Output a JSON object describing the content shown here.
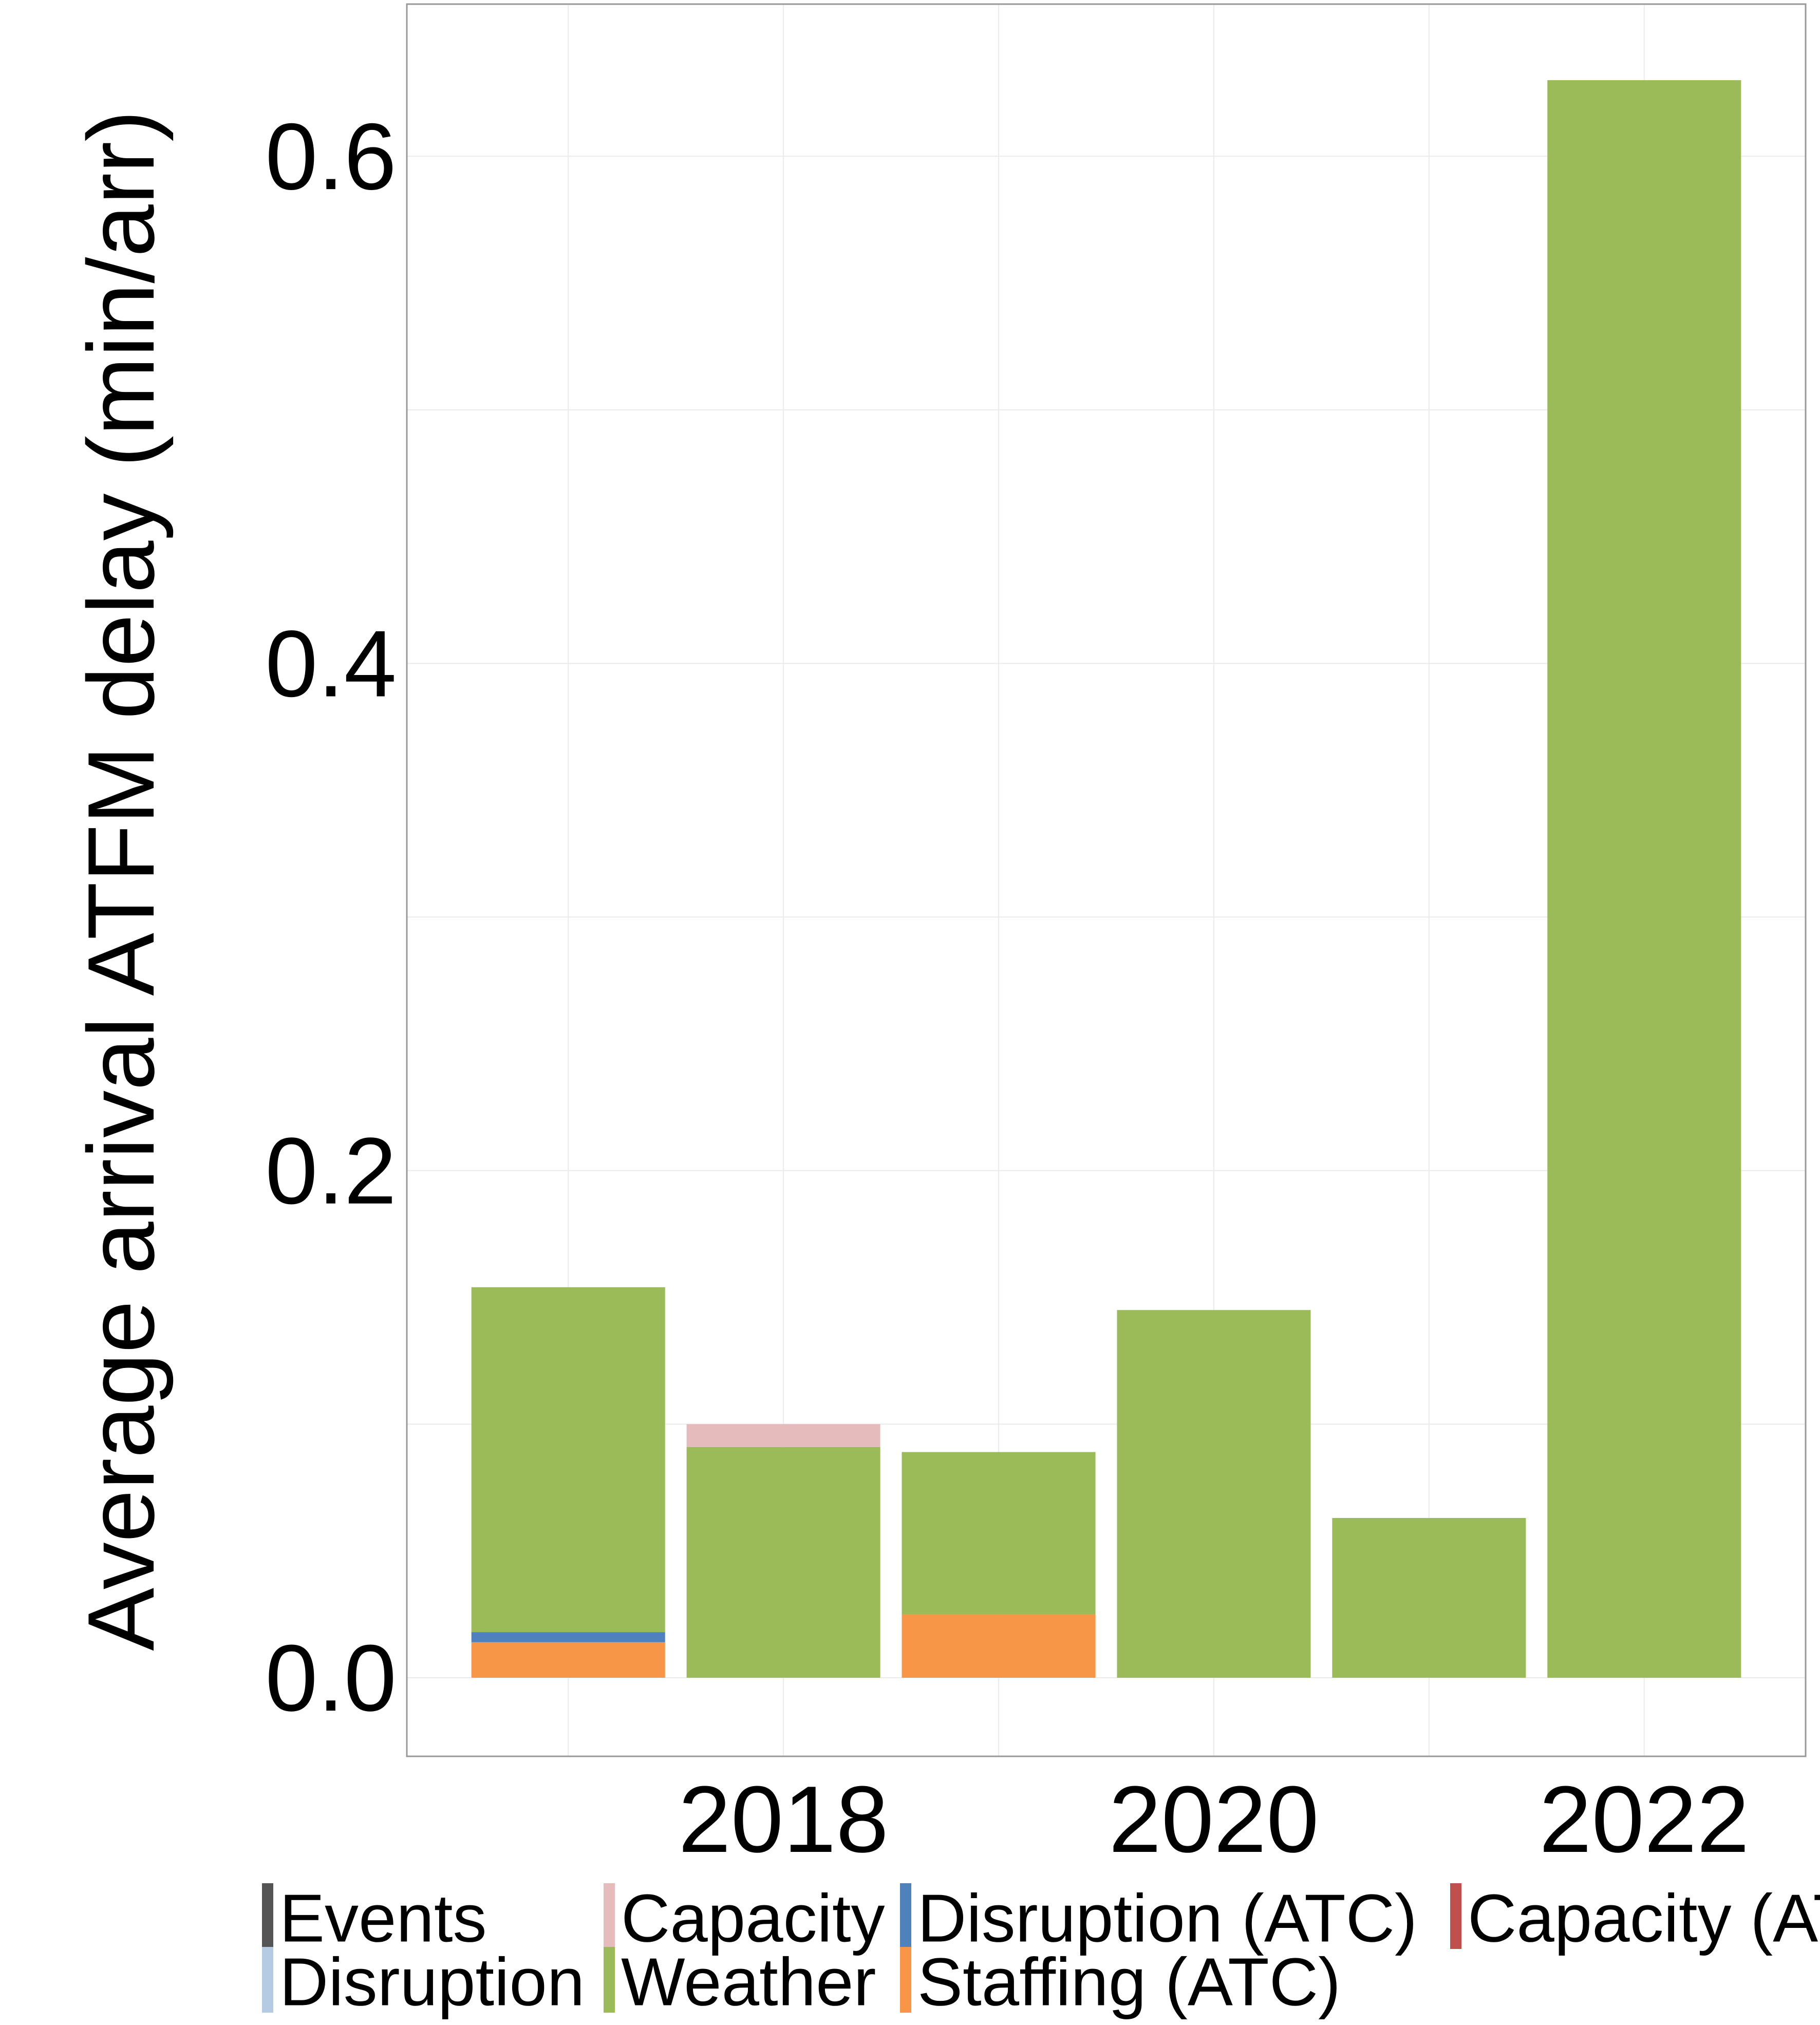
{
  "chart_data": {
    "type": "bar",
    "stacked": true,
    "title": "",
    "xlabel": "",
    "ylabel": "Average arrival ATFM delay (min/arr)",
    "x": [
      2017,
      2018,
      2019,
      2020,
      2021,
      2022
    ],
    "x_ticks": [
      "2018",
      "2020",
      "2022"
    ],
    "y_ticks": [
      "0.0",
      "0.2",
      "0.4",
      "0.6"
    ],
    "ylim": [
      -0.031,
      0.66
    ],
    "xlim": [
      2016.25,
      2022.75
    ],
    "grid": true,
    "legend_position": "bottom",
    "series": [
      {
        "name": "Events",
        "color": "#555555",
        "values": [
          0,
          0,
          0,
          0,
          0,
          0
        ]
      },
      {
        "name": "Disruption",
        "color": "#B5CBE3",
        "values": [
          0,
          0,
          0,
          0,
          0,
          0
        ]
      },
      {
        "name": "Capacity",
        "color": "#E6BBBB",
        "values": [
          0,
          0.009,
          0,
          0,
          0,
          0
        ]
      },
      {
        "name": "Weather",
        "color": "#9BBB59",
        "values": [
          0.136,
          0.091,
          0.064,
          0.145,
          0.063,
          0.63
        ]
      },
      {
        "name": "Disruption (ATC)",
        "color": "#4F81BD",
        "values": [
          0.004,
          0,
          0,
          0,
          0,
          0
        ]
      },
      {
        "name": "Staffing (ATC)",
        "color": "#F79646",
        "values": [
          0.014,
          0,
          0.025,
          0,
          0,
          0
        ]
      },
      {
        "name": "Capacity (ATC)",
        "color": "#C0504D",
        "values": [
          0,
          0,
          0,
          0,
          0,
          0
        ]
      }
    ],
    "stack_order": [
      "Staffing (ATC)",
      "Disruption (ATC)",
      "Weather",
      "Capacity",
      "Disruption",
      "Events",
      "Capacity (ATC)"
    ],
    "legend_order": [
      "Events",
      "Capacity",
      "Disruption (ATC)",
      "Capacity (ATC)",
      "Disruption",
      "Weather",
      "Staffing (ATC)"
    ]
  }
}
